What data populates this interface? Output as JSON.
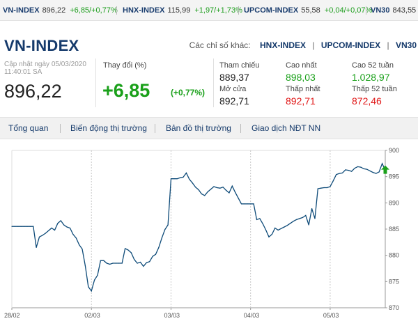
{
  "ticker": [
    {
      "name": "VN-INDEX",
      "value": "896,22",
      "change": "+6,85/+0,77%"
    },
    {
      "name": "HNX-INDEX",
      "value": "115,99",
      "change": "+1,97/+1,73%"
    },
    {
      "name": "UPCOM-INDEX",
      "value": "55,58",
      "change": "+0,04/+0,07%"
    },
    {
      "name": "VN30",
      "value": "843,55",
      "change": ""
    }
  ],
  "header": {
    "title": "VN-INDEX",
    "other_label": "Các chỉ số khác:",
    "other_links": [
      "HNX-INDEX",
      "UPCOM-INDEX",
      "VN30"
    ],
    "update_line1": "Cập nhật ngày 05/03/2020",
    "update_line2": "11:40:01 SA",
    "price": "896,22",
    "change_label": "Thay đổi (%)",
    "change_abs": "+6,85",
    "change_pct": "(+0,77%)"
  },
  "stats": [
    {
      "label": "Tham chiếu",
      "value": "889,37",
      "color": "#222222"
    },
    {
      "label": "Cao nhất",
      "value": "898,03",
      "color": "#1aa01a"
    },
    {
      "label": "Cao 52 tuần",
      "value": "1.028,97",
      "color": "#1aa01a"
    },
    {
      "label": "Mở cửa",
      "value": "892,71",
      "color": "#222222"
    },
    {
      "label": "Thấp nhất",
      "value": "892,71",
      "color": "#e01515"
    },
    {
      "label": "Thấp 52 tuần",
      "value": "872,46",
      "color": "#e01515"
    }
  ],
  "tabs": [
    "Tổng quan",
    "Biến động thị trường",
    "Bản đồ thị trường",
    "Giao dịch NĐT NN"
  ],
  "colors": {
    "line": "#0d4a78",
    "up": "#1aa01a",
    "down": "#e01515",
    "navy": "#153a6b"
  },
  "chart_data": {
    "type": "line",
    "title": "",
    "xlabel": "",
    "ylabel": "",
    "x_ticks": [
      "28/02",
      "02/03",
      "03/03",
      "04/03",
      "05/03"
    ],
    "y_ticks": [
      870,
      875,
      880,
      885,
      890,
      895,
      900
    ],
    "ylim": [
      870,
      900
    ],
    "grid": "vertical dotted lines at day boundaries",
    "marker": "green up-arrow at last point",
    "series": [
      {
        "values": [
          [
            0,
            885.5
          ],
          [
            1,
            885.5
          ],
          [
            2,
            885.5
          ],
          [
            3,
            885.5
          ],
          [
            4,
            885.5
          ],
          [
            5,
            885.5
          ],
          [
            6,
            885.5
          ],
          [
            7,
            885.5
          ],
          [
            8,
            881.5
          ],
          [
            9,
            883.5
          ],
          [
            10,
            883.8
          ],
          [
            11,
            884.2
          ],
          [
            12,
            884.7
          ],
          [
            13,
            885.2
          ],
          [
            14,
            884.8
          ],
          [
            15,
            886.1
          ],
          [
            16,
            886.6
          ],
          [
            17,
            885.8
          ],
          [
            18,
            885.4
          ],
          [
            19,
            885.2
          ],
          [
            20,
            884.0
          ],
          [
            21,
            883.3
          ],
          [
            22,
            882.0
          ],
          [
            23,
            881.2
          ],
          [
            24,
            878.0
          ],
          [
            25,
            874.0
          ],
          [
            26,
            873.2
          ],
          [
            27,
            875.3
          ],
          [
            28,
            876.2
          ],
          [
            29,
            879.0
          ],
          [
            30,
            879.0
          ],
          [
            31,
            878.5
          ],
          [
            32,
            878.3
          ],
          [
            33,
            878.5
          ],
          [
            34,
            878.5
          ],
          [
            35,
            878.5
          ],
          [
            36,
            878.5
          ],
          [
            37,
            881.3
          ],
          [
            38,
            881.0
          ],
          [
            39,
            880.5
          ],
          [
            40,
            879.2
          ],
          [
            41,
            878.5
          ],
          [
            42,
            878.7
          ],
          [
            43,
            877.9
          ],
          [
            44,
            878.6
          ],
          [
            45,
            878.8
          ],
          [
            46,
            879.8
          ],
          [
            47,
            880.2
          ],
          [
            48,
            881.5
          ],
          [
            49,
            883.3
          ],
          [
            50,
            884.9
          ],
          [
            51,
            885.8
          ],
          [
            52,
            894.6
          ],
          [
            53,
            894.6
          ],
          [
            54,
            894.6
          ],
          [
            55,
            894.8
          ],
          [
            56,
            894.9
          ],
          [
            57,
            895.7
          ],
          [
            58,
            894.5
          ],
          [
            59,
            893.8
          ],
          [
            60,
            893.0
          ],
          [
            61,
            892.5
          ],
          [
            62,
            891.7
          ],
          [
            63,
            891.4
          ],
          [
            64,
            892.1
          ],
          [
            65,
            892.6
          ],
          [
            66,
            893.1
          ],
          [
            67,
            892.9
          ],
          [
            68,
            892.8
          ],
          [
            69,
            893.0
          ],
          [
            70,
            892.4
          ],
          [
            71,
            891.9
          ],
          [
            72,
            893.2
          ],
          [
            73,
            892.0
          ],
          [
            74,
            890.9
          ],
          [
            75,
            889.8
          ],
          [
            76,
            889.8
          ],
          [
            77,
            889.8
          ],
          [
            78,
            889.8
          ],
          [
            79,
            889.8
          ],
          [
            80,
            886.8
          ],
          [
            81,
            887.0
          ],
          [
            82,
            886.0
          ],
          [
            83,
            884.8
          ],
          [
            84,
            883.5
          ],
          [
            85,
            884.0
          ],
          [
            86,
            885.2
          ],
          [
            87,
            884.8
          ],
          [
            88,
            885.1
          ],
          [
            89,
            885.4
          ],
          [
            90,
            885.7
          ],
          [
            91,
            886.1
          ],
          [
            92,
            886.5
          ],
          [
            93,
            886.8
          ],
          [
            94,
            887.0
          ],
          [
            95,
            887.2
          ],
          [
            96,
            887.6
          ],
          [
            97,
            885.8
          ],
          [
            98,
            888.9
          ],
          [
            99,
            887.0
          ],
          [
            100,
            892.7
          ],
          [
            101,
            892.8
          ],
          [
            102,
            892.9
          ],
          [
            103,
            892.9
          ],
          [
            104,
            893.1
          ],
          [
            105,
            894.2
          ],
          [
            106,
            895.4
          ],
          [
            107,
            895.6
          ],
          [
            108,
            895.7
          ],
          [
            109,
            896.3
          ],
          [
            110,
            896.2
          ],
          [
            111,
            896.0
          ],
          [
            112,
            896.6
          ],
          [
            113,
            896.9
          ],
          [
            114,
            896.8
          ],
          [
            115,
            896.5
          ],
          [
            116,
            896.4
          ],
          [
            117,
            896.1
          ],
          [
            118,
            895.8
          ],
          [
            119,
            895.6
          ],
          [
            120,
            895.9
          ],
          [
            121,
            897.5
          ],
          [
            122,
            896.2
          ]
        ]
      }
    ]
  }
}
